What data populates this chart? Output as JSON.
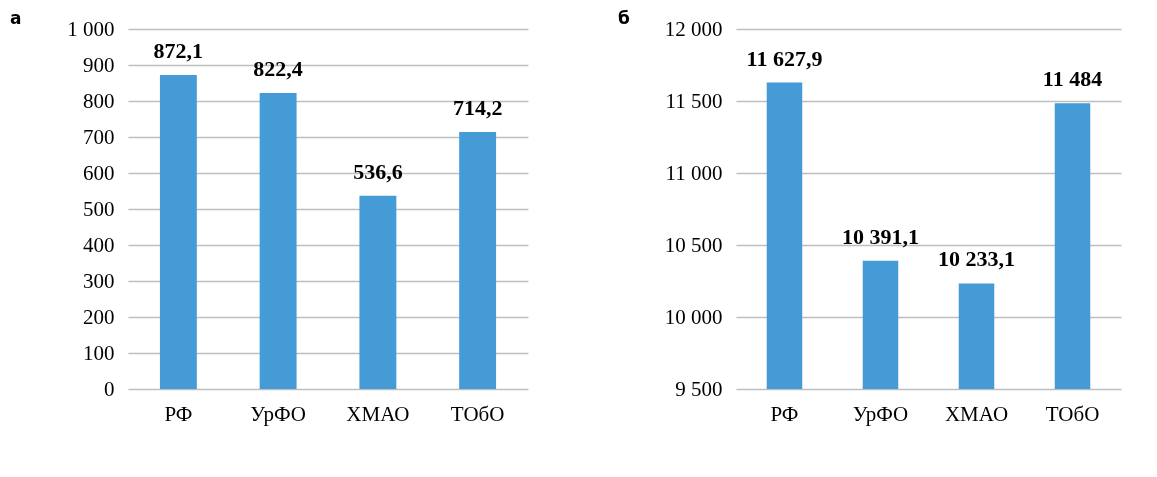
{
  "chart_data": [
    {
      "type": "bar",
      "title": "а",
      "categories": [
        "РФ",
        "УрФО",
        "ХМАО",
        "ТОбО"
      ],
      "series": [
        {
          "color": "#449bd6",
          "values": [
            872.1,
            822.4,
            536.6,
            714.2
          ],
          "value_labels": [
            "872,1",
            "822,4",
            "536,6",
            "714,2"
          ]
        }
      ],
      "ylim": [
        0,
        1000
      ],
      "yticks": [
        0,
        100,
        200,
        300,
        400,
        500,
        600,
        700,
        800,
        900,
        {
          "value": 1000,
          "label": "1 000"
        }
      ],
      "grid": "y"
    },
    {
      "type": "bar",
      "title": "б",
      "categories": [
        "РФ",
        "УрФО",
        "ХМАО",
        "ТОбО"
      ],
      "series": [
        {
          "color": "#449bd6",
          "values": [
            11627.9,
            10391.1,
            10233.1,
            11484
          ],
          "value_labels": [
            "11 627,9",
            "10 391,1",
            "10 233,1",
            "11 484"
          ]
        }
      ],
      "ylim": [
        9500,
        12000
      ],
      "yticks": [
        {
          "value": 9500,
          "label": "9 500"
        },
        {
          "value": 10000,
          "label": "10 000"
        },
        {
          "value": 10500,
          "label": "10 500"
        },
        {
          "value": 11000,
          "label": "11 000"
        },
        {
          "value": 11500,
          "label": "11 500"
        },
        {
          "value": 12000,
          "label": "12 000"
        }
      ],
      "grid": "y"
    }
  ]
}
